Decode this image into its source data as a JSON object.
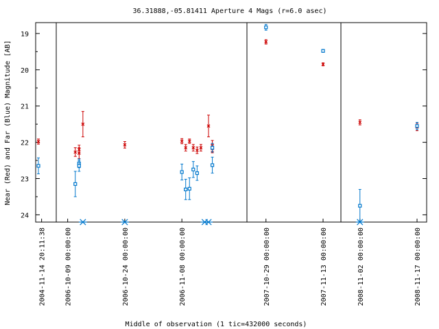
{
  "chart_data": {
    "type": "scatter",
    "title": "36.31888,-05.81411   Aperture 4 Mags (r=6.0 asec)",
    "xlabel": "Middle of observation (1 tic=432000 seconds)",
    "ylabel": "Near (Red) and Far (Blue) Magnitude [AB]",
    "ylim": [
      24.2,
      18.7
    ],
    "y_inverted": true,
    "grid": false,
    "y_ticks": [
      "19",
      "20",
      "21",
      "22",
      "23",
      "24"
    ],
    "x_tick_labels": [
      "2004-11-14 20:11:38",
      "2006-10-09 00:00:00",
      "2006-10-24 00:00:00",
      "2006-11-08 00:00:00",
      "2007-10-29 00:00:00",
      "2007-11-13 00:00:00",
      "2008-11-02 00:00:00",
      "2008-11-17 00:00:00"
    ],
    "segments": [
      {
        "start": "2004-11-14"
      },
      {
        "start": "2006-10-06"
      },
      {
        "start": "2007-10-24"
      },
      {
        "start": "2008-10-28"
      }
    ],
    "series": [
      {
        "color": "#cc0000",
        "marker": "x",
        "points": [
          {
            "x": "2004-11-14",
            "y": 21.98,
            "err": 0.07
          },
          {
            "x": "2006-10-11",
            "y": 22.27,
            "err": 0.12
          },
          {
            "x": "2006-10-12",
            "y": 22.2,
            "err": 0.12
          },
          {
            "x": "2006-10-12",
            "y": 22.3,
            "err": 0.15
          },
          {
            "x": "2006-10-13",
            "y": 21.5,
            "err": 0.35
          },
          {
            "x": "2006-10-24",
            "y": 22.07,
            "err": 0.09
          },
          {
            "x": "2006-11-08",
            "y": 21.97,
            "err": 0.07
          },
          {
            "x": "2006-11-09",
            "y": 22.15,
            "err": 0.09
          },
          {
            "x": "2006-11-10",
            "y": 21.97,
            "err": 0.06
          },
          {
            "x": "2006-11-11",
            "y": 22.15,
            "err": 0.09
          },
          {
            "x": "2006-11-12",
            "y": 22.22,
            "err": 0.09
          },
          {
            "x": "2006-11-13",
            "y": 22.15,
            "err": 0.09
          },
          {
            "x": "2006-11-15",
            "y": 21.55,
            "err": 0.3
          },
          {
            "x": "2006-11-16",
            "y": 22.1,
            "err": 0.15
          },
          {
            "x": "2006-11-16",
            "y": 22.17,
            "err": 0.12
          },
          {
            "x": "2007-10-29",
            "y": 19.23,
            "err": 0.06
          },
          {
            "x": "2007-11-13",
            "y": 19.85,
            "err": 0.04
          },
          {
            "x": "2008-11-02",
            "y": 21.45,
            "err": 0.07
          },
          {
            "x": "2008-11-17",
            "y": 21.58,
            "err": 0.1
          }
        ]
      },
      {
        "color": "#0077cc",
        "marker": "square",
        "points": [
          {
            "x": "2004-11-14",
            "y": 22.65,
            "err": 0.22
          },
          {
            "x": "2006-10-11",
            "y": 23.15,
            "err": 0.35
          },
          {
            "x": "2006-10-12",
            "y": 22.58,
            "err": 0.12
          },
          {
            "x": "2006-10-12",
            "y": 22.65,
            "err": 0.15
          },
          {
            "x": "2006-11-08",
            "y": 22.82,
            "err": 0.22
          },
          {
            "x": "2006-11-09",
            "y": 23.3,
            "err": 0.28
          },
          {
            "x": "2006-11-10",
            "y": 23.28,
            "err": 0.3
          },
          {
            "x": "2006-11-11",
            "y": 22.75,
            "err": 0.22
          },
          {
            "x": "2006-11-12",
            "y": 22.85,
            "err": 0.2
          },
          {
            "x": "2006-11-16",
            "y": 22.15,
            "err": 0.12
          },
          {
            "x": "2006-11-16",
            "y": 22.63,
            "err": 0.22
          },
          {
            "x": "2007-10-29",
            "y": 18.83,
            "err": 0.08
          },
          {
            "x": "2007-11-13",
            "y": 19.48,
            "err": 0.04
          },
          {
            "x": "2008-11-02",
            "y": 23.75,
            "err": 0.45
          },
          {
            "x": "2008-11-17",
            "y": 21.55,
            "err": 0.1
          }
        ]
      }
    ],
    "upper_limit_markers": {
      "color": "#0077cc",
      "marker": "asterisk",
      "y": 24.2,
      "x": [
        "2006-10-13",
        "2006-10-24",
        "2006-11-14",
        "2006-11-15",
        "2008-11-02"
      ]
    }
  }
}
